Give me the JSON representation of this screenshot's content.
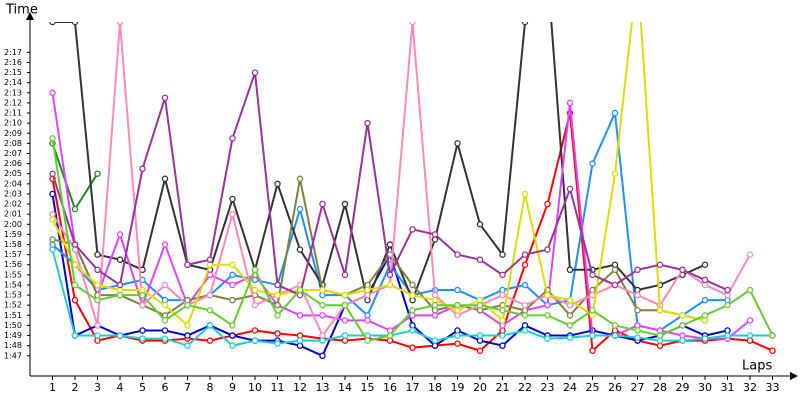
{
  "chart_data": {
    "type": "line",
    "y_label": "Time",
    "x_label": "Laps",
    "xlim": [
      0,
      34
    ],
    "ylim": [
      105,
      140
    ],
    "x": [
      1,
      2,
      3,
      4,
      5,
      6,
      7,
      8,
      9,
      10,
      11,
      12,
      13,
      14,
      15,
      16,
      17,
      18,
      19,
      20,
      21,
      22,
      23,
      24,
      25,
      26,
      27,
      28,
      29,
      30,
      31,
      32,
      33
    ],
    "xticks": [
      1,
      2,
      3,
      4,
      5,
      6,
      7,
      8,
      9,
      10,
      11,
      12,
      13,
      14,
      15,
      16,
      17,
      18,
      19,
      20,
      21,
      22,
      23,
      24,
      25,
      26,
      27,
      28,
      29,
      30,
      31,
      32,
      33
    ],
    "yticks": [
      {
        "value": 107,
        "label": "1:47"
      },
      {
        "value": 108,
        "label": "1:48"
      },
      {
        "value": 109,
        "label": "1:49"
      },
      {
        "value": 110,
        "label": "1:50"
      },
      {
        "value": 111,
        "label": "1:51"
      },
      {
        "value": 112,
        "label": "1:52"
      },
      {
        "value": 113,
        "label": "1:53"
      },
      {
        "value": 114,
        "label": "1:54"
      },
      {
        "value": 115,
        "label": "1:55"
      },
      {
        "value": 116,
        "label": "1:56"
      },
      {
        "value": 117,
        "label": "1:57"
      },
      {
        "value": 118,
        "label": "1:58"
      },
      {
        "value": 119,
        "label": "1:59"
      },
      {
        "value": 120,
        "label": "2:00"
      },
      {
        "value": 121,
        "label": "2:01"
      },
      {
        "value": 122,
        "label": "2:02"
      },
      {
        "value": 123,
        "label": "2:03"
      },
      {
        "value": 124,
        "label": "2:04"
      },
      {
        "value": 125,
        "label": "2:05"
      },
      {
        "value": 126,
        "label": "2:06"
      },
      {
        "value": 127,
        "label": "2:07"
      },
      {
        "value": 128,
        "label": "2:08"
      },
      {
        "value": 129,
        "label": "2:09"
      },
      {
        "value": 130,
        "label": "2:10"
      },
      {
        "value": 131,
        "label": "2:11"
      },
      {
        "value": 132,
        "label": "2:12"
      },
      {
        "value": 133,
        "label": "2:13"
      },
      {
        "value": 134,
        "label": "2:14"
      },
      {
        "value": 135,
        "label": "2:15"
      },
      {
        "value": 136,
        "label": "2:16"
      },
      {
        "value": 137,
        "label": "2:17"
      }
    ],
    "series": [
      {
        "color": "#ff0000",
        "values": [
          124.5,
          112.5,
          108.5,
          109,
          108.5,
          108.5,
          108.7,
          108.5,
          109,
          109.5,
          109.2,
          109,
          108.7,
          108.5,
          108.7,
          108.5,
          107.8,
          108,
          108.2,
          107.5,
          109.5,
          116,
          122,
          131,
          107.5,
          109.5,
          108.5,
          108,
          108.5,
          108.5,
          108.7,
          108.5,
          107.5
        ]
      },
      {
        "color": "#0000cc",
        "values": [
          123,
          109,
          110,
          109,
          109.5,
          109.5,
          109,
          110,
          109,
          108.5,
          108.5,
          108,
          107,
          112,
          113,
          117,
          110,
          108,
          109.5,
          108.5,
          108,
          110,
          109,
          109,
          109.5,
          109,
          108.5,
          109,
          110,
          109,
          109.5,
          null,
          null
        ]
      },
      {
        "color": "#228822",
        "values": [
          128,
          121.5,
          125,
          null,
          null,
          null,
          null,
          null,
          null,
          null,
          null,
          null,
          null,
          null,
          null,
          null,
          null,
          null,
          null,
          null,
          null,
          null,
          null,
          null,
          null,
          null,
          null,
          null,
          null,
          null,
          null,
          null,
          null
        ]
      },
      {
        "color": "#1e90ff",
        "values": [
          118,
          116,
          113.5,
          114,
          114.5,
          112.5,
          112.5,
          113,
          115,
          114.5,
          114,
          121.5,
          113,
          113,
          111,
          116,
          113,
          113.5,
          113.5,
          112.5,
          113.5,
          114,
          112,
          112.5,
          126,
          131,
          110,
          109.5,
          111,
          112.5,
          112.5,
          null,
          null
        ]
      },
      {
        "color": "#333333",
        "values": [
          140,
          140,
          117,
          116.5,
          115.5,
          124.5,
          116,
          115.5,
          122.5,
          115.5,
          124,
          117.5,
          114,
          122,
          112.5,
          118,
          112.5,
          118.5,
          128,
          120,
          117,
          140,
          145,
          115.5,
          115.5,
          116,
          113.5,
          114,
          115,
          116,
          null,
          null,
          null
        ]
      },
      {
        "color": "#dd44ff",
        "values": [
          133,
          118,
          113,
          119,
          112,
          118,
          112,
          115,
          114,
          115,
          112,
          111,
          111,
          110.5,
          110.5,
          109.5,
          111,
          111,
          112,
          111.5,
          110,
          111.5,
          112,
          132,
          109,
          109,
          110,
          109.5,
          109,
          108.7,
          108.7,
          110.5,
          null
        ]
      },
      {
        "color": "#808040",
        "values": [
          118.5,
          118,
          113,
          113,
          112,
          111,
          112.5,
          113,
          112.5,
          113,
          112,
          124.5,
          113.5,
          113,
          114,
          117,
          114,
          111.5,
          112,
          111.5,
          112,
          111.5,
          113.5,
          111,
          113.5,
          115.5,
          111.5,
          111.5,
          111,
          110.5,
          null,
          null,
          null
        ]
      },
      {
        "color": "#ff88bb",
        "values": [
          121,
          117.5,
          110,
          140,
          112,
          114,
          112,
          113,
          121,
          112,
          113,
          114,
          109,
          112,
          113,
          114,
          140,
          113,
          111,
          112,
          113,
          112,
          113,
          112,
          113,
          114,
          113,
          112,
          115.5,
          114,
          113,
          117,
          null
        ]
      },
      {
        "color": "#dddd00",
        "values": [
          120.5,
          116,
          114,
          113.5,
          113.5,
          112,
          110,
          116,
          116,
          113.5,
          113,
          113.5,
          113.5,
          113,
          113.5,
          114,
          113,
          112.5,
          111.5,
          112.5,
          110.5,
          123,
          113,
          112.5,
          111,
          125,
          145,
          111.5,
          111,
          110.5,
          null,
          null,
          null
        ]
      },
      {
        "color": "#993399",
        "values": [
          125,
          118,
          115.5,
          114,
          125.5,
          132.5,
          116,
          116.5,
          128.5,
          135,
          114,
          113,
          122,
          115,
          130,
          115,
          119.5,
          119,
          117,
          116.5,
          115,
          117,
          117.5,
          123.5,
          115,
          114,
          115.5,
          116,
          115.5,
          114.5,
          113.5,
          null,
          null
        ]
      },
      {
        "color": "#22cccc",
        "values": [
          117.5,
          109,
          109,
          109,
          108.7,
          108.7,
          108,
          110,
          108,
          108.5,
          108.2,
          108.5,
          108.5,
          109,
          109,
          109,
          109.5,
          108.5,
          109,
          109,
          109,
          109.5,
          108.7,
          108.8,
          109,
          109,
          108.8,
          108.5,
          108.5,
          108.7,
          109,
          109,
          109
        ]
      },
      {
        "color": "#66cc33",
        "values": [
          128.5,
          114,
          112.5,
          113,
          113,
          110.5,
          112,
          111.5,
          110,
          115.5,
          111,
          113.5,
          112,
          112,
          108.5,
          109,
          111.5,
          112,
          112,
          112,
          111.5,
          111,
          111,
          110,
          111.5,
          110,
          109.5,
          109,
          110,
          111,
          112,
          113.5,
          109
        ]
      }
    ]
  }
}
